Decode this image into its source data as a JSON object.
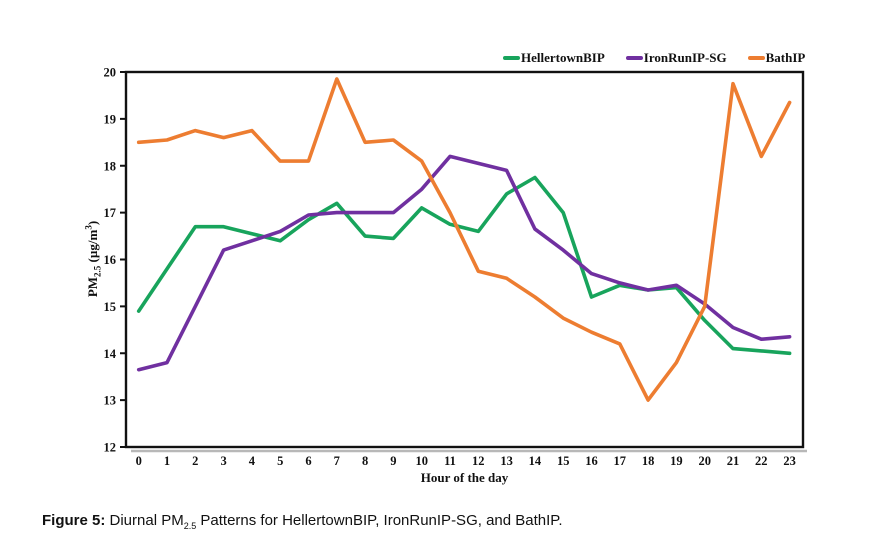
{
  "caption": {
    "label": "Figure 5:",
    "before_sub": " Diurnal PM",
    "sub": "2.5",
    "after_sub": " Patterns for HellertownBIP, IronRunIP-SG, and BathIP."
  },
  "chart_data": {
    "type": "line",
    "title": "",
    "xlabel": "Hour of the day",
    "ylabel_full": "PM2.5 (µg/m³)",
    "ylabel": {
      "base": "PM",
      "sub": "2.5",
      "unit": " (µg/m",
      "sup": "3",
      "close": ")"
    },
    "x": [
      0,
      1,
      2,
      3,
      4,
      5,
      6,
      7,
      8,
      9,
      10,
      11,
      12,
      13,
      14,
      15,
      16,
      17,
      18,
      19,
      20,
      21,
      22,
      23
    ],
    "ylim": [
      12,
      20
    ],
    "yticks": [
      12,
      13,
      14,
      15,
      16,
      17,
      18,
      19,
      20
    ],
    "grid": false,
    "legend_position": "top",
    "series": [
      {
        "name": "HellertownBIP",
        "color": "#18A45C",
        "values": [
          14.9,
          15.8,
          16.7,
          16.7,
          16.55,
          16.4,
          16.85,
          17.2,
          16.5,
          16.45,
          17.1,
          16.75,
          16.6,
          17.4,
          17.75,
          17.0,
          15.2,
          15.45,
          15.35,
          15.4,
          14.7,
          14.1,
          14.05,
          14.0
        ]
      },
      {
        "name": "IronRunIP-SG",
        "color": "#7030A0",
        "values": [
          13.65,
          13.8,
          15.0,
          16.2,
          16.4,
          16.6,
          16.95,
          17.0,
          17.0,
          17.0,
          17.5,
          18.2,
          18.05,
          17.9,
          16.65,
          16.2,
          15.7,
          15.5,
          15.35,
          15.45,
          15.05,
          14.55,
          14.3,
          14.35
        ]
      },
      {
        "name": "BathIP",
        "color": "#ED7D31",
        "values": [
          18.5,
          18.55,
          18.75,
          18.6,
          18.75,
          18.1,
          18.1,
          19.85,
          18.5,
          18.55,
          18.1,
          17.0,
          15.75,
          15.6,
          15.2,
          14.75,
          14.45,
          14.2,
          13.0,
          13.8,
          15.0,
          19.75,
          18.2,
          19.35
        ]
      }
    ]
  }
}
